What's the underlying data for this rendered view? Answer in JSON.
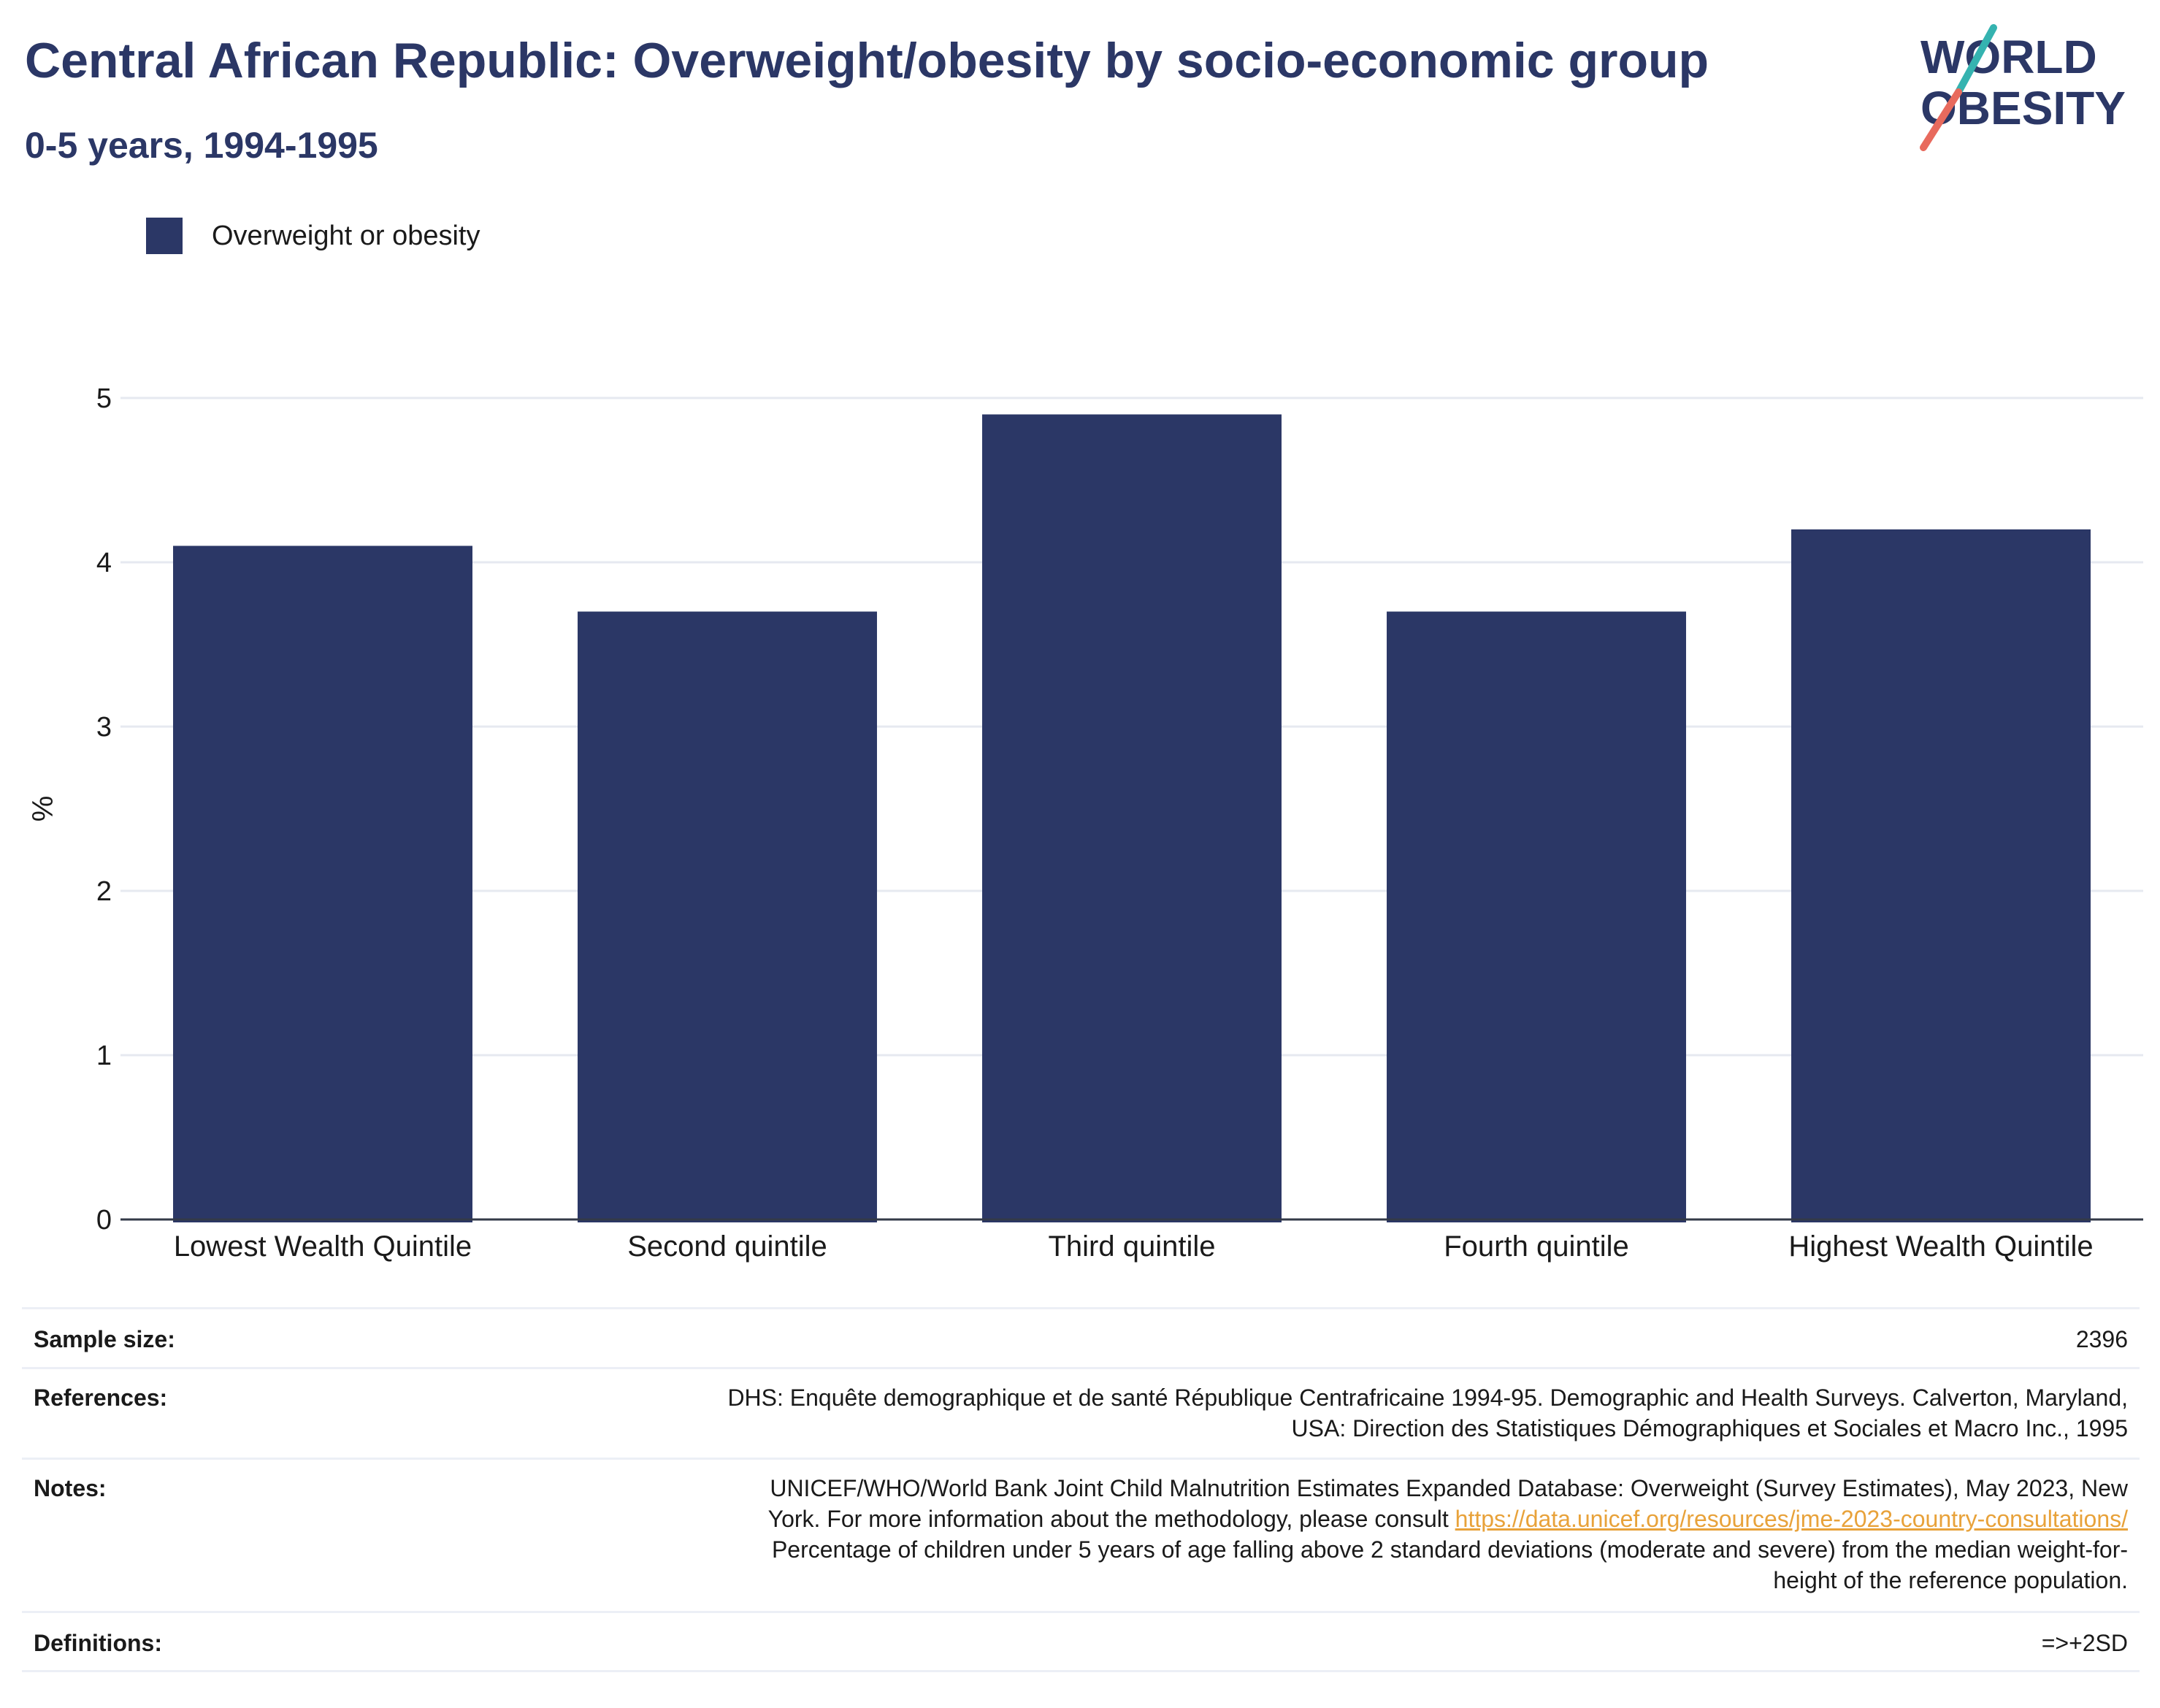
{
  "title": "Central African Republic: Overweight/obesity by socio-economic group",
  "subtitle": "0-5 years, 1994-1995",
  "logo": {
    "line1": "WORLD",
    "line2": "OBESITY"
  },
  "colors": {
    "bar": "#2b3766",
    "title": "#2b3766",
    "link": "#e8a23a",
    "grid": "#e6e9f0"
  },
  "chart_data": {
    "type": "bar",
    "categories": [
      "Lowest Wealth Quintile",
      "Second quintile",
      "Third quintile",
      "Fourth quintile",
      "Highest Wealth Quintile"
    ],
    "series": [
      {
        "name": "Overweight or obesity",
        "values": [
          4.1,
          3.7,
          4.9,
          3.7,
          4.2
        ]
      }
    ],
    "ylabel": "%",
    "ylim": [
      0,
      5
    ],
    "yticks": [
      0,
      1,
      2,
      3,
      4,
      5
    ],
    "grid": true,
    "legend": "top-left"
  },
  "info": {
    "sample_size": {
      "label": "Sample size:",
      "value": "2396"
    },
    "references": {
      "label": "References:",
      "line1": "DHS: Enquête demographique et de santé République Centrafricaine 1994-95. Demographic and Health Surveys. Calverton, Maryland,",
      "line2": "USA: Direction des Statistiques Démographiques et Sociales et Macro Inc., 1995"
    },
    "notes": {
      "label": "Notes:",
      "line1": "UNICEF/WHO/World Bank Joint Child Malnutrition Estimates Expanded Database: Overweight (Survey Estimates), May 2023, New",
      "line2_text": "York. For more information about the methodology, please consult ",
      "line2_link": "https://data.unicef.org/resources/jme-2023-country-consultations/",
      "line3": "Percentage of children under 5 years of age falling above 2 standard deviations (moderate and severe) from the median weight-for-",
      "line4": "height of the reference population."
    },
    "definitions": {
      "label": "Definitions:",
      "value": "=>+2SD"
    }
  }
}
